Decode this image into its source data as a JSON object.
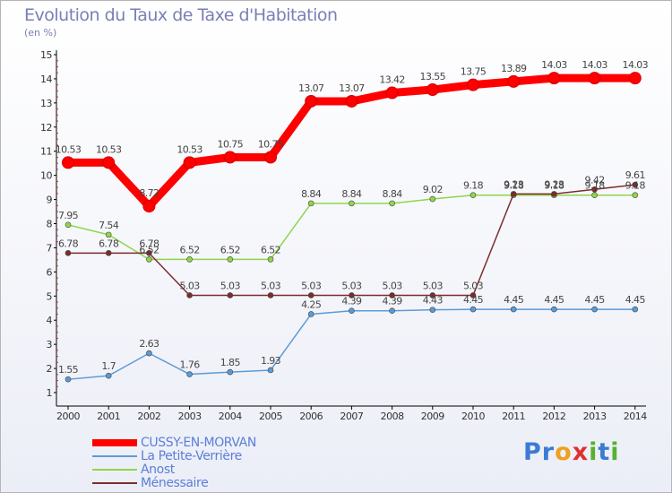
{
  "title": "Evolution du Taux de Taxe d'Habitation",
  "unit": "(en %)",
  "logo": "Proxiti",
  "chart_data": {
    "type": "line",
    "title": "Evolution du Taux de Taxe d'Habitation",
    "ylabel": "(en %)",
    "ylim": [
      1,
      15
    ],
    "yticks": [
      1,
      2,
      3,
      4,
      5,
      6,
      7,
      8,
      9,
      10,
      11,
      12,
      13,
      14,
      15
    ],
    "grid": false,
    "legend_position": "bottom-left",
    "categories": [
      "2000",
      "2001",
      "2002",
      "2003",
      "2004",
      "2005",
      "2006",
      "2007",
      "2008",
      "2009",
      "2010",
      "2011",
      "2012",
      "2013",
      "2014"
    ],
    "series": [
      {
        "name": "CUSSY-EN-MORVAN",
        "color": "#ff0000",
        "values": [
          10.53,
          10.53,
          8.72,
          10.53,
          10.75,
          10.75,
          13.07,
          13.07,
          13.42,
          13.55,
          13.75,
          13.89,
          14.03,
          14.03,
          14.03
        ],
        "labels": [
          "10.53",
          "10.53",
          "8.72",
          "10.53",
          "10.75",
          "10.75",
          "13.07",
          "13.07",
          "13.42",
          "13.55",
          "13.75",
          "13.89",
          "14.03",
          "14.03",
          "14.03"
        ]
      },
      {
        "name": "La Petite-Verrière",
        "color": "#5b9bd5",
        "values": [
          1.55,
          1.7,
          2.63,
          1.76,
          1.85,
          1.93,
          4.25,
          4.39,
          4.39,
          4.43,
          4.45,
          4.45,
          4.45,
          4.45,
          4.45
        ],
        "labels": [
          "1.55",
          "1.7",
          "2.63",
          "1.76",
          "1.85",
          "1.93",
          "4.25",
          "4.39",
          "4.39",
          "4.43",
          "4.45",
          "4.45",
          "4.45",
          "4.45",
          "4.45"
        ]
      },
      {
        "name": "Anost",
        "color": "#8ed64a",
        "values": [
          7.95,
          7.54,
          6.52,
          6.52,
          6.52,
          6.52,
          8.84,
          8.84,
          8.84,
          9.02,
          9.18,
          9.18,
          9.18,
          9.18,
          9.18
        ],
        "labels": [
          "7.95",
          "7.54",
          "6.52",
          "6.52",
          "6.52",
          "6.52",
          "8.84",
          "8.84",
          "8.84",
          "9.02",
          "9.18",
          "9.18",
          "9.18",
          "9.18",
          "9.18"
        ]
      },
      {
        "name": "Ménessaire",
        "color": "#7b2d2d",
        "values": [
          6.78,
          6.78,
          6.78,
          5.03,
          5.03,
          5.03,
          5.03,
          5.03,
          5.03,
          5.03,
          5.03,
          9.23,
          9.23,
          9.42,
          9.61
        ],
        "labels": [
          "6.78",
          "6.78",
          "6.78",
          "5.03",
          "5.03",
          "5.03",
          "5.03",
          "5.03",
          "5.03",
          "5.03",
          "5.03",
          "9.23",
          "9.23",
          "9.42",
          "9.61"
        ]
      }
    ]
  }
}
